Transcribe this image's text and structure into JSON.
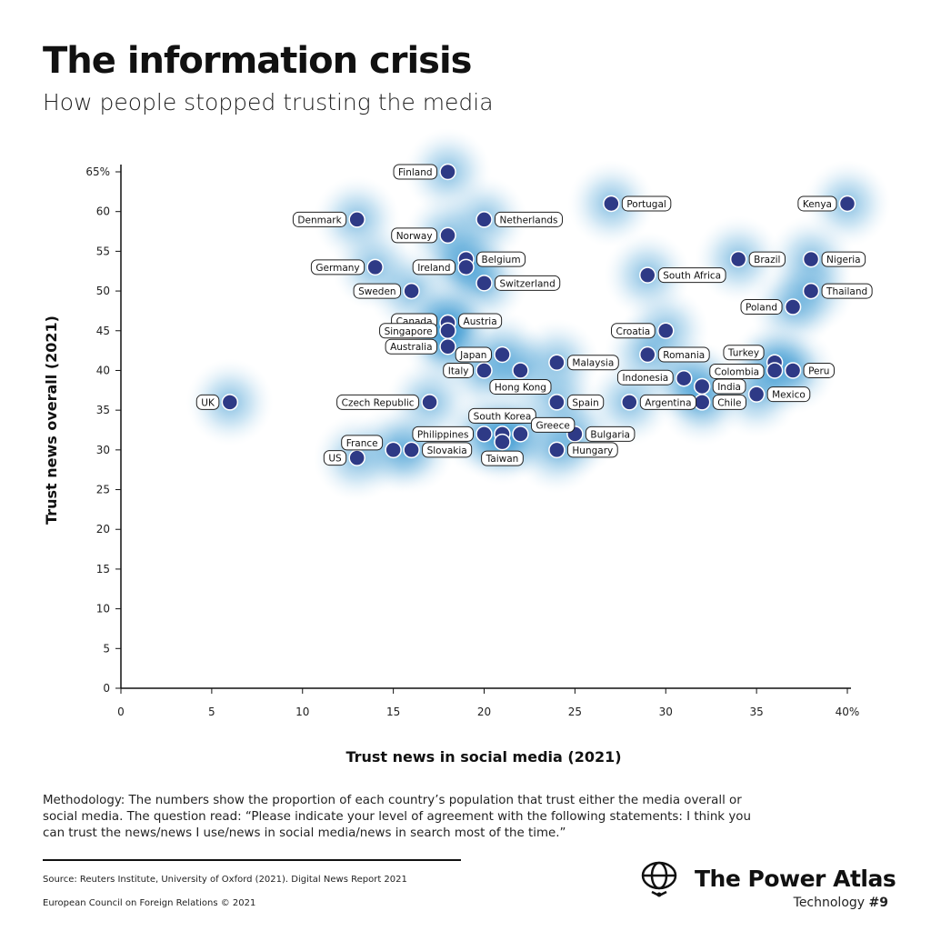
{
  "header": {
    "title": "The information crisis",
    "subtitle": "How people stopped trusting the media"
  },
  "chart_data": {
    "type": "scatter",
    "xlabel": "Trust news in social media (2021)",
    "ylabel": "Trust news overall (2021)",
    "xlim": [
      0,
      40
    ],
    "ylim": [
      0,
      65
    ],
    "x_ticks": [
      "0",
      "5",
      "10",
      "15",
      "20",
      "25",
      "30",
      "35",
      "40%"
    ],
    "y_ticks": [
      "0",
      "5",
      "10",
      "15",
      "20",
      "25",
      "30",
      "35",
      "40",
      "45",
      "50",
      "55",
      "60",
      "65%"
    ],
    "grid": false,
    "density_background": true,
    "point_color": "#2e3a86",
    "density_color": "#1b86c8",
    "points": [
      {
        "name": "Finland",
        "x": 18,
        "y": 65
      },
      {
        "name": "Portugal",
        "x": 27,
        "y": 61
      },
      {
        "name": "Kenya",
        "x": 40,
        "y": 61
      },
      {
        "name": "Denmark",
        "x": 13,
        "y": 59
      },
      {
        "name": "Netherlands",
        "x": 20,
        "y": 59
      },
      {
        "name": "Norway",
        "x": 18,
        "y": 57
      },
      {
        "name": "Brazil",
        "x": 34,
        "y": 54
      },
      {
        "name": "Nigeria",
        "x": 38,
        "y": 54
      },
      {
        "name": "Belgium",
        "x": 19,
        "y": 54
      },
      {
        "name": "Germany",
        "x": 14,
        "y": 53
      },
      {
        "name": "Ireland",
        "x": 19,
        "y": 53
      },
      {
        "name": "South Africa",
        "x": 29,
        "y": 52
      },
      {
        "name": "Switzerland",
        "x": 20,
        "y": 51
      },
      {
        "name": "Sweden",
        "x": 16,
        "y": 50
      },
      {
        "name": "Thailand",
        "x": 38,
        "y": 50
      },
      {
        "name": "Poland",
        "x": 37,
        "y": 48
      },
      {
        "name": "Canada",
        "x": 18,
        "y": 46
      },
      {
        "name": "Austria",
        "x": 18,
        "y": 46
      },
      {
        "name": "Singapore",
        "x": 18,
        "y": 45
      },
      {
        "name": "Croatia",
        "x": 30,
        "y": 45
      },
      {
        "name": "Australia",
        "x": 18,
        "y": 43
      },
      {
        "name": "Romania",
        "x": 29,
        "y": 42
      },
      {
        "name": "Japan",
        "x": 21,
        "y": 42
      },
      {
        "name": "Malaysia",
        "x": 24,
        "y": 41
      },
      {
        "name": "Turkey",
        "x": 36,
        "y": 41
      },
      {
        "name": "Italy",
        "x": 20,
        "y": 40
      },
      {
        "name": "Hong Kong",
        "x": 22,
        "y": 40
      },
      {
        "name": "Colombia",
        "x": 36,
        "y": 40
      },
      {
        "name": "Peru",
        "x": 37,
        "y": 40
      },
      {
        "name": "Indonesia",
        "x": 31,
        "y": 39
      },
      {
        "name": "India",
        "x": 32,
        "y": 38
      },
      {
        "name": "Mexico",
        "x": 35,
        "y": 37
      },
      {
        "name": "Argentina",
        "x": 28,
        "y": 36
      },
      {
        "name": "Chile",
        "x": 32,
        "y": 36
      },
      {
        "name": "Spain",
        "x": 24,
        "y": 36
      },
      {
        "name": "Czech Republic",
        "x": 17,
        "y": 36
      },
      {
        "name": "UK",
        "x": 6,
        "y": 36
      },
      {
        "name": "Philippines",
        "x": 20,
        "y": 32
      },
      {
        "name": "South Korea",
        "x": 21,
        "y": 32
      },
      {
        "name": "Greece",
        "x": 22,
        "y": 32
      },
      {
        "name": "Bulgaria",
        "x": 25,
        "y": 32
      },
      {
        "name": "Taiwan",
        "x": 21,
        "y": 31
      },
      {
        "name": "Hungary",
        "x": 24,
        "y": 30
      },
      {
        "name": "France",
        "x": 15,
        "y": 30
      },
      {
        "name": "Slovakia",
        "x": 16,
        "y": 30
      },
      {
        "name": "US",
        "x": 13,
        "y": 29
      }
    ]
  },
  "footer": {
    "methodology": "Methodology: The numbers show the proportion of each country’s population that trust either the media overall or social media. The question read: “Please indicate your level of agreement with the following statements: I think you can trust the news/news I use/news in social media/news in search most of the time.”",
    "source": "Source: Reuters Institute, University of Oxford (2021). Digital News Report 2021",
    "copyright": "European Council on Foreign Relations © 2021",
    "brand": "The Power Atlas",
    "series_name": "Technology",
    "series_number": "#9"
  }
}
